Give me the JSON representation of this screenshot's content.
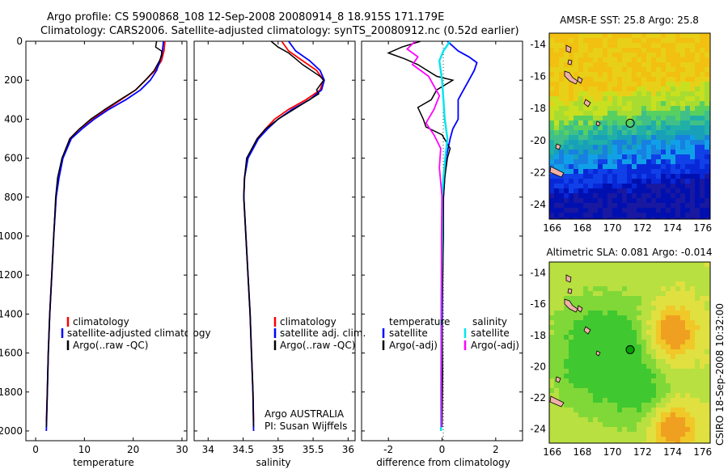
{
  "header": {
    "title_line1": "Argo profile: CS 5900868_108 12-Sep-2008 20080914_8 18.915S 171.179E",
    "title_line2": "Climatology: CARS2006. Satellite-adjusted climatology: synTS_20080912.nc (0.52d earlier)"
  },
  "colors": {
    "climatology": "#ff0000",
    "satellite": "#0000ff",
    "argo": "#000000",
    "sat_salinity": "#00e5ee",
    "argo_salinity": "#ff00ff"
  },
  "chart_data": [
    {
      "id": "temperature",
      "type": "line",
      "xlabel": "temperature",
      "xlim": [
        -2,
        31
      ],
      "ylim": [
        0,
        2050
      ],
      "xticks": [
        "0",
        "10",
        "20",
        "30"
      ],
      "xtick_values": [
        0,
        10,
        20,
        30
      ],
      "yticks": [
        "0",
        "200",
        "400",
        "600",
        "800",
        "1000",
        "1200",
        "1400",
        "1600",
        "1800",
        "2000"
      ],
      "ytick_values": [
        0,
        200,
        400,
        600,
        800,
        1000,
        1200,
        1400,
        1600,
        1800,
        2000
      ],
      "legend": [
        "climatology",
        "satellite-adjusted climatology",
        "Argo(..raw -QC)"
      ],
      "series": [
        {
          "name": "climatology",
          "color": "#ff0000",
          "x": [
            26.5,
            26.3,
            25.8,
            24.5,
            22.5,
            20.5,
            17.5,
            14.5,
            11.5,
            9,
            7,
            5.5,
            4.7,
            4.2,
            3.7,
            3.3,
            2.9,
            2.6,
            2.4,
            2.2
          ],
          "y": [
            0,
            50,
            100,
            150,
            200,
            250,
            300,
            350,
            400,
            450,
            500,
            600,
            700,
            800,
            1000,
            1200,
            1400,
            1600,
            1800,
            1950
          ]
        },
        {
          "name": "satellite-adjusted climatology",
          "color": "#0000ff",
          "x": [
            26.2,
            26,
            25.5,
            24.8,
            23.5,
            21.5,
            18.5,
            15,
            12,
            9.5,
            7.3,
            5.6,
            4.8,
            4.2,
            3.7,
            3.3,
            2.9,
            2.6,
            2.4,
            2.2
          ],
          "y": [
            0,
            50,
            100,
            150,
            200,
            250,
            300,
            350,
            400,
            450,
            500,
            600,
            700,
            800,
            1000,
            1200,
            1400,
            1600,
            1800,
            2000
          ]
        },
        {
          "name": "Argo(..raw -QC)",
          "color": "#000000",
          "x": [
            24.8,
            24.6,
            25.8,
            25.9,
            25.4,
            24.3,
            22.5,
            20.5,
            17.3,
            14.2,
            11.3,
            9,
            7,
            5.4,
            4.5,
            4.1,
            3.7,
            3.3,
            2.9,
            2.6,
            2.4,
            2.2
          ],
          "y": [
            0,
            30,
            50,
            70,
            100,
            150,
            200,
            250,
            300,
            350,
            400,
            450,
            500,
            600,
            700,
            800,
            1000,
            1200,
            1400,
            1600,
            1800,
            1980
          ]
        }
      ]
    },
    {
      "id": "salinity",
      "type": "line",
      "xlabel": "salinity",
      "xlim": [
        33.8,
        36.1
      ],
      "ylim": [
        0,
        2050
      ],
      "xticks": [
        "34",
        "34.5",
        "35",
        "35.5",
        "36"
      ],
      "xtick_values": [
        34,
        34.5,
        35,
        35.5,
        36
      ],
      "legend": [
        "climatology",
        "satellite adj. clim.",
        "Argo(..raw -QC)"
      ],
      "annotation": [
        "Argo AUSTRALIA",
        "PI: Susan Wijffels"
      ],
      "series": [
        {
          "name": "climatology",
          "color": "#ff0000",
          "x": [
            35.05,
            35.15,
            35.35,
            35.55,
            35.65,
            35.6,
            35.4,
            35.15,
            34.95,
            34.82,
            34.7,
            34.56,
            34.52,
            34.51,
            34.54,
            34.57,
            34.6,
            34.62,
            34.64,
            34.65
          ],
          "y": [
            0,
            50,
            100,
            150,
            200,
            250,
            300,
            350,
            400,
            450,
            500,
            600,
            700,
            800,
            1000,
            1200,
            1400,
            1600,
            1800,
            1950
          ]
        },
        {
          "name": "satellite adj. clim.",
          "color": "#0000ff",
          "x": [
            35.15,
            35.25,
            35.45,
            35.6,
            35.66,
            35.62,
            35.45,
            35.2,
            35.0,
            34.85,
            34.72,
            34.57,
            34.52,
            34.51,
            34.54,
            34.57,
            34.6,
            34.62,
            34.64,
            34.65
          ],
          "y": [
            0,
            50,
            100,
            150,
            200,
            250,
            300,
            350,
            400,
            450,
            500,
            600,
            700,
            800,
            1000,
            1200,
            1400,
            1600,
            1800,
            2000
          ]
        },
        {
          "name": "Argo(..raw -QC)",
          "color": "#000000",
          "x": [
            34.9,
            35.0,
            35.15,
            35.25,
            35.35,
            35.6,
            35.65,
            35.55,
            35.58,
            35.0,
            34.82,
            34.7,
            34.55,
            34.52,
            34.51,
            34.54,
            34.57,
            34.6,
            34.62,
            34.64,
            34.65
          ],
          "y": [
            0,
            30,
            60,
            90,
            120,
            180,
            200,
            250,
            270,
            400,
            450,
            500,
            600,
            700,
            800,
            1000,
            1200,
            1400,
            1600,
            1800,
            1980
          ]
        }
      ]
    },
    {
      "id": "difference",
      "type": "line",
      "xlabel": "difference from climatology",
      "xlim": [
        -3.0,
        3.0
      ],
      "ylim": [
        0,
        2050
      ],
      "xticks": [
        "-2",
        "0",
        "2"
      ],
      "xtick_values": [
        -2,
        0,
        2
      ],
      "legend_temperature": {
        "title": "temperature",
        "items": [
          "satellite",
          "Argo(-adj)"
        ]
      },
      "legend_salinity": {
        "title": "salinity",
        "items": [
          "satellite",
          "Argo(-adj)"
        ]
      },
      "series": [
        {
          "name": "temperature satellite",
          "color": "#0000ff",
          "x": [
            0.2,
            0.6,
            1.0,
            1.3,
            1.2,
            1.0,
            0.8,
            0.6,
            0.6,
            0.4,
            0.3,
            0.15,
            0.1,
            0.05,
            0.03,
            0.02,
            0.01,
            0.0
          ],
          "y": [
            0,
            50,
            80,
            110,
            150,
            200,
            250,
            300,
            400,
            450,
            500,
            600,
            700,
            800,
            1000,
            1200,
            1400,
            1600
          ]
        },
        {
          "name": "temperature Argo(-adj)",
          "color": "#000000",
          "x": [
            -0.8,
            -1.5,
            -2.0,
            -1.4,
            -0.9,
            -0.2,
            0.4,
            -0.2,
            -0.4,
            -0.9,
            -0.7,
            -0.6,
            0.0,
            0.3,
            0.2,
            0.1,
            0.05,
            0.05,
            0.0,
            0.02,
            0.0
          ],
          "y": [
            0,
            30,
            60,
            90,
            120,
            180,
            200,
            250,
            300,
            340,
            400,
            440,
            480,
            550,
            600,
            700,
            800,
            1000,
            1400,
            1700,
            1980
          ]
        },
        {
          "name": "salinity satellite",
          "color": "#00e5ee",
          "x": [
            0.3,
            0.05,
            -0.1,
            0.0,
            0.05,
            0.1,
            0.15,
            0.2,
            0.12,
            0.05,
            0.0,
            0.0,
            -0.02,
            -0.03,
            -0.03,
            -0.04,
            -0.04
          ],
          "y": [
            0,
            50,
            100,
            200,
            300,
            400,
            450,
            500,
            600,
            700,
            800,
            1000,
            1200,
            1400,
            1600,
            1800,
            2000
          ]
        },
        {
          "name": "salinity Argo(-adj)",
          "color": "#ff00ff",
          "x": [
            -1.0,
            -1.3,
            -0.9,
            -1.1,
            -0.5,
            -0.3,
            -0.1,
            -0.3,
            -0.6,
            -0.3,
            -0.05,
            -0.1,
            0.0,
            -0.02,
            -0.02,
            -0.03,
            -0.02
          ],
          "y": [
            0,
            40,
            80,
            120,
            180,
            230,
            280,
            350,
            420,
            480,
            550,
            650,
            800,
            1000,
            1400,
            1700,
            1980
          ]
        }
      ]
    },
    {
      "id": "sst_map",
      "type": "heatmap",
      "title": "AMSR-E SST: 25.8 Argo: 25.8",
      "xticks": [
        "166",
        "168",
        "170",
        "172",
        "174",
        "176"
      ],
      "xtick_values": [
        166,
        168,
        170,
        172,
        174,
        176
      ],
      "yticks": [
        "-14",
        "-16",
        "-18",
        "-20",
        "-22",
        "-24"
      ],
      "ytick_values": [
        -14,
        -16,
        -18,
        -20,
        -22,
        -24
      ],
      "xlim": [
        165.8,
        176.5
      ],
      "ylim": [
        -24.9,
        -13.3
      ],
      "float_position": {
        "lon": 171.179,
        "lat": -18.915
      }
    },
    {
      "id": "sla_map",
      "type": "heatmap",
      "title": "Altimetric SLA: 0.081 Argo: -0.014",
      "xticks": [
        "166",
        "168",
        "170",
        "172",
        "174",
        "176"
      ],
      "xtick_values": [
        166,
        168,
        170,
        172,
        174,
        176
      ],
      "yticks": [
        "-14",
        "-16",
        "-18",
        "-20",
        "-22",
        "-24"
      ],
      "ytick_values": [
        -14,
        -16,
        -18,
        -20,
        -22,
        -24
      ],
      "xlim": [
        165.8,
        176.5
      ],
      "ylim": [
        -24.9,
        -13.3
      ],
      "float_position": {
        "lon": 171.179,
        "lat": -18.915
      }
    }
  ],
  "footer": {
    "credit": "CSIRO 18-Sep-2008 10:32:00"
  }
}
